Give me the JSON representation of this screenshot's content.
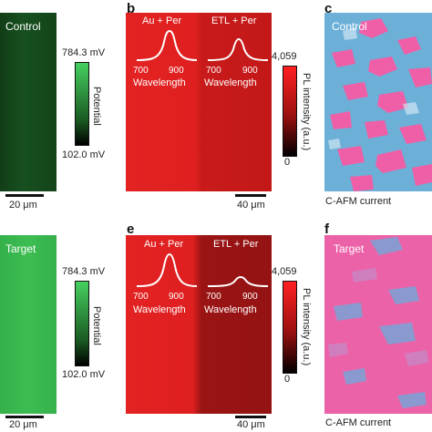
{
  "top": {
    "letters": {
      "b": "b",
      "c": "c"
    },
    "control_label": "Control",
    "potential_max": "784.3 mV",
    "potential_min": "102.0 mV",
    "potential_axis": "Potential",
    "scale_a": "20 μm",
    "inset_left_title": "Au + Per",
    "inset_right_title": "ETL + Per",
    "tick_700": "700",
    "tick_900": "900",
    "wavelength": "Wavelength",
    "pl_max": "4,059",
    "pl_min": "0",
    "pl_axis": "PL intensity (a.u.)",
    "scale_b": "40 μm",
    "c_label": "Control",
    "cafm": "C-AFM current"
  },
  "bottom": {
    "letters": {
      "e": "e",
      "f": "f"
    },
    "target_label": "Target",
    "potential_max": "784.3 mV",
    "potential_min": "102.0 mV",
    "potential_axis": "Potential",
    "scale_d": "20 μm",
    "inset_left_title": "Au + Per",
    "inset_right_title": "ETL + Per",
    "tick_700": "700",
    "tick_900": "900",
    "wavelength": "Wavelength",
    "pl_max": "4,059",
    "pl_min": "0",
    "pl_axis": "PL intensity (a.u.)",
    "scale_e": "40 μm",
    "f_label": "Target",
    "cafm": "C-AFM current"
  },
  "colors": {
    "kpfm_dark": "#0f3a14",
    "kpfm_bright": "#3fbf55",
    "pl_red": "#d81f1f",
    "pl_dark_red": "#8e1212",
    "cafm_blue": "#6aaed6",
    "cafm_pink": "#ef5fa7"
  }
}
